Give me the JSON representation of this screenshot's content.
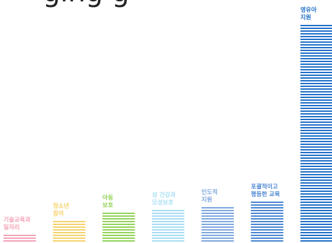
{
  "chart_data": {
    "type": "bar",
    "title": "ging g",
    "categories": [
      [
        "기술교육과",
        "일자리"
      ],
      [
        "청소년",
        "참여"
      ],
      [
        "아동",
        "보호"
      ],
      [
        "성 건강과",
        "모성보호"
      ],
      [
        "인도적",
        "지원"
      ],
      [
        "포괄적이고",
        "평등한 교육"
      ],
      [
        "영유아",
        "지원"
      ]
    ],
    "values": [
      3,
      8,
      11,
      12,
      13,
      15,
      79
    ],
    "colors": [
      "#f3a3b6",
      "#f4d36e",
      "#93d35a",
      "#a9def5",
      "#7ea8de",
      "#4a86d2",
      "#2170c9"
    ]
  }
}
